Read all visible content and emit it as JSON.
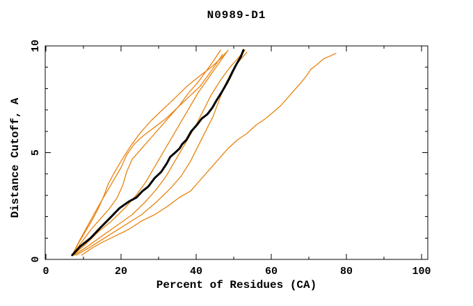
{
  "chart_data": {
    "type": "line",
    "title": "N0989-D1",
    "xlabel": "Percent of Residues (CA)",
    "ylabel": "Distance Cutoff, A",
    "xlim": [
      0,
      100
    ],
    "ylim": [
      0,
      10
    ],
    "x_major_ticks": [
      0,
      20,
      40,
      60,
      80,
      100
    ],
    "x_minor_step": 10,
    "y_major_ticks": [
      0,
      5,
      10
    ],
    "y_minor_step": 1,
    "grid": false,
    "legend_position": "none",
    "box_frame": true,
    "colors": {
      "model_line": "#e8820c",
      "reference_line": "#000000",
      "frame": "#000000"
    },
    "series": [
      {
        "name": "model-1",
        "color": "#e8820c",
        "width": 1.3,
        "points": [
          [
            7.0,
            0.2
          ],
          [
            8.5,
            0.7
          ],
          [
            10.5,
            1.3
          ],
          [
            12.5,
            1.9
          ],
          [
            14.0,
            2.4
          ],
          [
            15.5,
            3.0
          ],
          [
            16.5,
            3.5
          ],
          [
            18.0,
            4.0
          ],
          [
            20.0,
            4.6
          ],
          [
            22.5,
            5.3
          ],
          [
            25.0,
            5.9
          ],
          [
            28.0,
            6.5
          ],
          [
            31.0,
            7.0
          ],
          [
            34.0,
            7.5
          ],
          [
            37.5,
            8.1
          ],
          [
            41.0,
            8.6
          ],
          [
            44.0,
            9.0
          ],
          [
            46.5,
            9.4
          ],
          [
            48.0,
            9.7
          ]
        ]
      },
      {
        "name": "model-2",
        "color": "#e8820c",
        "width": 1.3,
        "points": [
          [
            7.0,
            0.2
          ],
          [
            9.5,
            0.8
          ],
          [
            12.0,
            1.4
          ],
          [
            14.5,
            1.9
          ],
          [
            17.0,
            2.4
          ],
          [
            19.0,
            2.9
          ],
          [
            20.5,
            3.5
          ],
          [
            21.5,
            4.1
          ],
          [
            23.0,
            4.7
          ],
          [
            25.5,
            5.2
          ],
          [
            28.0,
            5.7
          ],
          [
            30.5,
            6.2
          ],
          [
            33.0,
            6.7
          ],
          [
            35.5,
            7.2
          ],
          [
            38.0,
            7.8
          ],
          [
            40.5,
            8.3
          ],
          [
            43.0,
            8.9
          ],
          [
            45.0,
            9.4
          ],
          [
            46.5,
            9.8
          ]
        ]
      },
      {
        "name": "model-3",
        "color": "#e8820c",
        "width": 1.3,
        "points": [
          [
            7.2,
            0.2
          ],
          [
            10.5,
            0.7
          ],
          [
            14.0,
            1.3
          ],
          [
            17.5,
            1.8
          ],
          [
            21.0,
            2.4
          ],
          [
            24.0,
            3.0
          ],
          [
            26.5,
            3.6
          ],
          [
            28.5,
            4.2
          ],
          [
            30.5,
            4.8
          ],
          [
            32.5,
            5.4
          ],
          [
            34.5,
            6.0
          ],
          [
            36.5,
            6.6
          ],
          [
            38.5,
            7.2
          ],
          [
            40.5,
            7.8
          ],
          [
            42.5,
            8.3
          ],
          [
            44.5,
            8.8
          ],
          [
            46.5,
            9.3
          ],
          [
            48.5,
            9.8
          ]
        ]
      },
      {
        "name": "model-4",
        "color": "#e8820c",
        "width": 1.3,
        "points": [
          [
            7.5,
            0.2
          ],
          [
            11.0,
            0.6
          ],
          [
            15.0,
            1.1
          ],
          [
            19.0,
            1.6
          ],
          [
            23.0,
            2.1
          ],
          [
            26.5,
            2.7
          ],
          [
            29.5,
            3.3
          ],
          [
            32.0,
            3.9
          ],
          [
            34.0,
            4.5
          ],
          [
            36.0,
            5.1
          ],
          [
            38.0,
            5.7
          ],
          [
            40.0,
            6.3
          ],
          [
            42.0,
            7.0
          ],
          [
            44.0,
            7.7
          ],
          [
            46.5,
            8.4
          ],
          [
            49.0,
            9.0
          ],
          [
            51.5,
            9.5
          ],
          [
            53.0,
            9.8
          ]
        ]
      },
      {
        "name": "model-5",
        "color": "#e8820c",
        "width": 1.3,
        "points": [
          [
            8.0,
            0.2
          ],
          [
            12.0,
            0.6
          ],
          [
            16.5,
            1.1
          ],
          [
            21.0,
            1.6
          ],
          [
            25.5,
            2.1
          ],
          [
            29.5,
            2.7
          ],
          [
            33.0,
            3.3
          ],
          [
            36.0,
            3.9
          ],
          [
            38.5,
            4.6
          ],
          [
            40.5,
            5.3
          ],
          [
            42.5,
            6.0
          ],
          [
            44.5,
            6.7
          ],
          [
            46.0,
            7.4
          ],
          [
            47.5,
            8.1
          ],
          [
            49.5,
            8.8
          ],
          [
            51.5,
            9.3
          ],
          [
            53.5,
            9.7
          ]
        ]
      },
      {
        "name": "model-6",
        "color": "#e8820c",
        "width": 1.3,
        "points": [
          [
            7.0,
            0.2
          ],
          [
            9.0,
            0.9
          ],
          [
            11.5,
            1.7
          ],
          [
            14.0,
            2.5
          ],
          [
            16.0,
            3.1
          ],
          [
            18.0,
            3.7
          ],
          [
            20.0,
            4.3
          ],
          [
            21.5,
            4.9
          ],
          [
            23.5,
            5.4
          ],
          [
            26.0,
            5.8
          ],
          [
            29.0,
            6.2
          ],
          [
            32.0,
            6.6
          ],
          [
            35.0,
            7.1
          ],
          [
            38.0,
            7.6
          ],
          [
            41.0,
            8.1
          ],
          [
            43.5,
            8.7
          ],
          [
            45.5,
            9.2
          ],
          [
            47.0,
            9.6
          ]
        ]
      },
      {
        "name": "model-outlier",
        "color": "#e8820c",
        "width": 1.3,
        "points": [
          [
            9.5,
            0.2
          ],
          [
            12.0,
            0.5
          ],
          [
            15.0,
            0.8
          ],
          [
            18.5,
            1.1
          ],
          [
            22.0,
            1.4
          ],
          [
            25.5,
            1.8
          ],
          [
            29.0,
            2.1
          ],
          [
            32.5,
            2.5
          ],
          [
            35.5,
            2.9
          ],
          [
            38.5,
            3.2
          ],
          [
            40.5,
            3.6
          ],
          [
            42.5,
            4.0
          ],
          [
            44.5,
            4.4
          ],
          [
            46.5,
            4.8
          ],
          [
            48.5,
            5.2
          ],
          [
            51.0,
            5.6
          ],
          [
            53.5,
            5.9
          ],
          [
            56.0,
            6.3
          ],
          [
            58.5,
            6.6
          ],
          [
            60.5,
            6.9
          ],
          [
            62.5,
            7.2
          ],
          [
            64.5,
            7.6
          ],
          [
            66.5,
            8.0
          ],
          [
            68.5,
            8.4
          ],
          [
            69.8,
            8.7
          ],
          [
            70.5,
            8.9
          ],
          [
            72.0,
            9.1
          ],
          [
            74.0,
            9.4
          ],
          [
            76.0,
            9.55
          ],
          [
            77.2,
            9.65
          ]
        ]
      },
      {
        "name": "reference-bold",
        "color": "#000000",
        "width": 3,
        "points": [
          [
            7.0,
            0.2
          ],
          [
            9.1,
            0.6
          ],
          [
            11.9,
            1.0
          ],
          [
            14.6,
            1.5
          ],
          [
            17.4,
            2.0
          ],
          [
            19.6,
            2.4
          ],
          [
            22.0,
            2.7
          ],
          [
            24.1,
            2.9
          ],
          [
            25.7,
            3.2
          ],
          [
            27.2,
            3.4
          ],
          [
            28.9,
            3.8
          ],
          [
            30.7,
            4.1
          ],
          [
            32.2,
            4.5
          ],
          [
            33.1,
            4.8
          ],
          [
            34.4,
            5.0
          ],
          [
            35.6,
            5.2
          ],
          [
            36.3,
            5.4
          ],
          [
            37.4,
            5.6
          ],
          [
            38.7,
            6.0
          ],
          [
            40.2,
            6.3
          ],
          [
            41.5,
            6.6
          ],
          [
            43.0,
            6.8
          ],
          [
            44.3,
            7.1
          ],
          [
            45.6,
            7.5
          ],
          [
            46.7,
            7.8
          ],
          [
            48.0,
            8.2
          ],
          [
            48.9,
            8.5
          ],
          [
            50.0,
            8.9
          ],
          [
            50.9,
            9.2
          ],
          [
            51.9,
            9.5
          ],
          [
            52.6,
            9.8
          ]
        ]
      }
    ]
  }
}
